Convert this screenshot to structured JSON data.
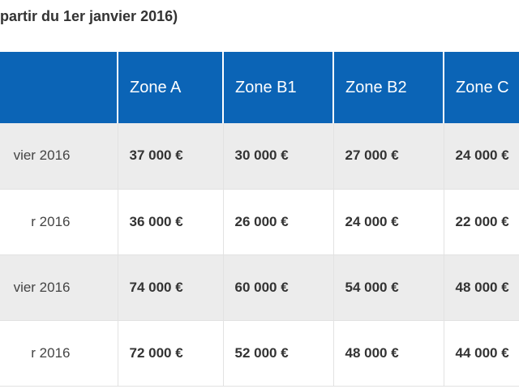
{
  "caption": "partir du 1er janvier 2016)",
  "table": {
    "headers": [
      "",
      "Zone A",
      "Zone B1",
      "Zone B2",
      "Zone C"
    ],
    "rows": [
      {
        "label": "vier 2016",
        "values": [
          "37 000 €",
          "30 000 €",
          "27 000 €",
          "24 000 €"
        ]
      },
      {
        "label": "r 2016",
        "values": [
          "36 000 €",
          "26 000 €",
          "24 000 €",
          "22 000 €"
        ]
      },
      {
        "label": "vier 2016",
        "values": [
          "74 000 €",
          "60 000 €",
          "54 000 €",
          "48 000 €"
        ]
      },
      {
        "label": "r 2016",
        "values": [
          "72 000 €",
          "52 000 €",
          "48 000 €",
          "44 000 €"
        ]
      }
    ]
  },
  "colors": {
    "header_bg": "#0b64b6",
    "header_text": "#ffffff",
    "shaded_row": "#ececec",
    "text": "#333333"
  }
}
